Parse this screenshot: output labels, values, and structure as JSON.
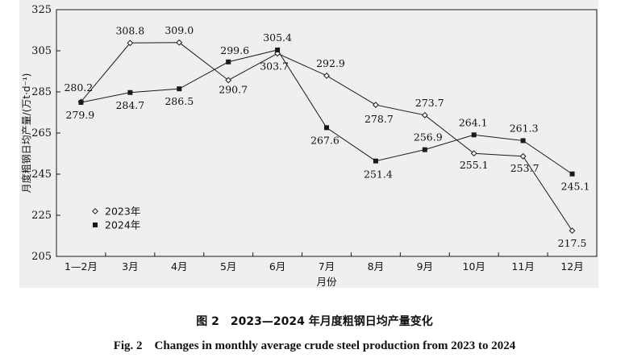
{
  "chart_data": {
    "type": "line",
    "categories": [
      "1—2月",
      "3月",
      "4月",
      "5月",
      "6月",
      "7月",
      "8月",
      "9月",
      "10月",
      "11月",
      "12月"
    ],
    "series": [
      {
        "name": "2023年",
        "marker": "open-diamond",
        "values": [
          280.2,
          308.8,
          309.0,
          290.7,
          303.7,
          292.9,
          278.7,
          273.7,
          255.1,
          253.7,
          217.5
        ]
      },
      {
        "name": "2024年",
        "marker": "filled-square",
        "values": [
          279.9,
          284.7,
          286.5,
          299.6,
          305.4,
          267.6,
          251.4,
          256.9,
          264.1,
          261.3,
          245.1
        ]
      }
    ],
    "ylim": [
      205,
      325
    ],
    "yticks": [
      "205",
      "225",
      "245",
      "265",
      "285",
      "305",
      "325"
    ],
    "xlabel": "月份",
    "ylabel": "月度粗钢日均产量/(万t·d⁻¹)",
    "data_labels": {
      "2023年": [
        "280.2",
        "308.8",
        "309.0",
        "290.7",
        "303.7",
        "292.9",
        "278.7",
        "273.7",
        "255.1",
        "253.7",
        "217.5"
      ],
      "2024年": [
        "279.9",
        "284.7",
        "286.5",
        "299.6",
        "305.4",
        "267.6",
        "251.4",
        "256.9",
        "264.1",
        "261.3",
        "245.1"
      ]
    },
    "legend_position": "bottom-left",
    "grid": false
  },
  "caption": {
    "cn": "图 2　2023—2024 年月度粗钢日均产量变化",
    "en": "Fig. 2　Changes in monthly average crude steel production from 2023 to 2024"
  },
  "colors": {
    "line": "#1a1a1a",
    "background": "#efefef"
  }
}
